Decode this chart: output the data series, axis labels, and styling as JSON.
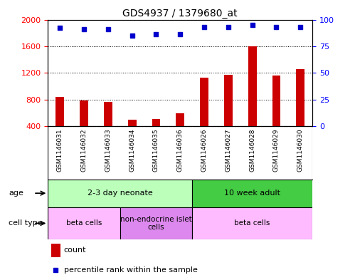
{
  "title": "GDS4937 / 1379680_at",
  "samples": [
    "GSM1146031",
    "GSM1146032",
    "GSM1146033",
    "GSM1146034",
    "GSM1146035",
    "GSM1146036",
    "GSM1146026",
    "GSM1146027",
    "GSM1146028",
    "GSM1146029",
    "GSM1146030"
  ],
  "counts": [
    840,
    780,
    760,
    490,
    510,
    590,
    1130,
    1170,
    1600,
    1160,
    1260
  ],
  "percentiles": [
    92,
    91,
    91,
    85,
    86,
    86,
    93,
    93,
    95,
    93,
    93
  ],
  "ylim_left": [
    400,
    2000
  ],
  "ylim_right": [
    0,
    100
  ],
  "yticks_left": [
    400,
    800,
    1200,
    1600,
    2000
  ],
  "yticks_right": [
    0,
    25,
    50,
    75,
    100
  ],
  "bar_color": "#cc0000",
  "dot_color": "#0000cc",
  "age_groups": [
    {
      "label": "2-3 day neonate",
      "start": 0,
      "end": 6,
      "color": "#bbffbb"
    },
    {
      "label": "10 week adult",
      "start": 6,
      "end": 11,
      "color": "#44cc44"
    }
  ],
  "cell_type_groups": [
    {
      "label": "beta cells",
      "start": 0,
      "end": 3,
      "color": "#ffbbff"
    },
    {
      "label": "non-endocrine islet\ncells",
      "start": 3,
      "end": 6,
      "color": "#dd88ee"
    },
    {
      "label": "beta cells",
      "start": 6,
      "end": 11,
      "color": "#ffbbff"
    }
  ],
  "legend_count_label": "count",
  "legend_pct_label": "percentile rank within the sample",
  "age_label": "age",
  "cell_type_label": "cell type",
  "tick_label_bg": "#dddddd",
  "border_color": "#000000"
}
